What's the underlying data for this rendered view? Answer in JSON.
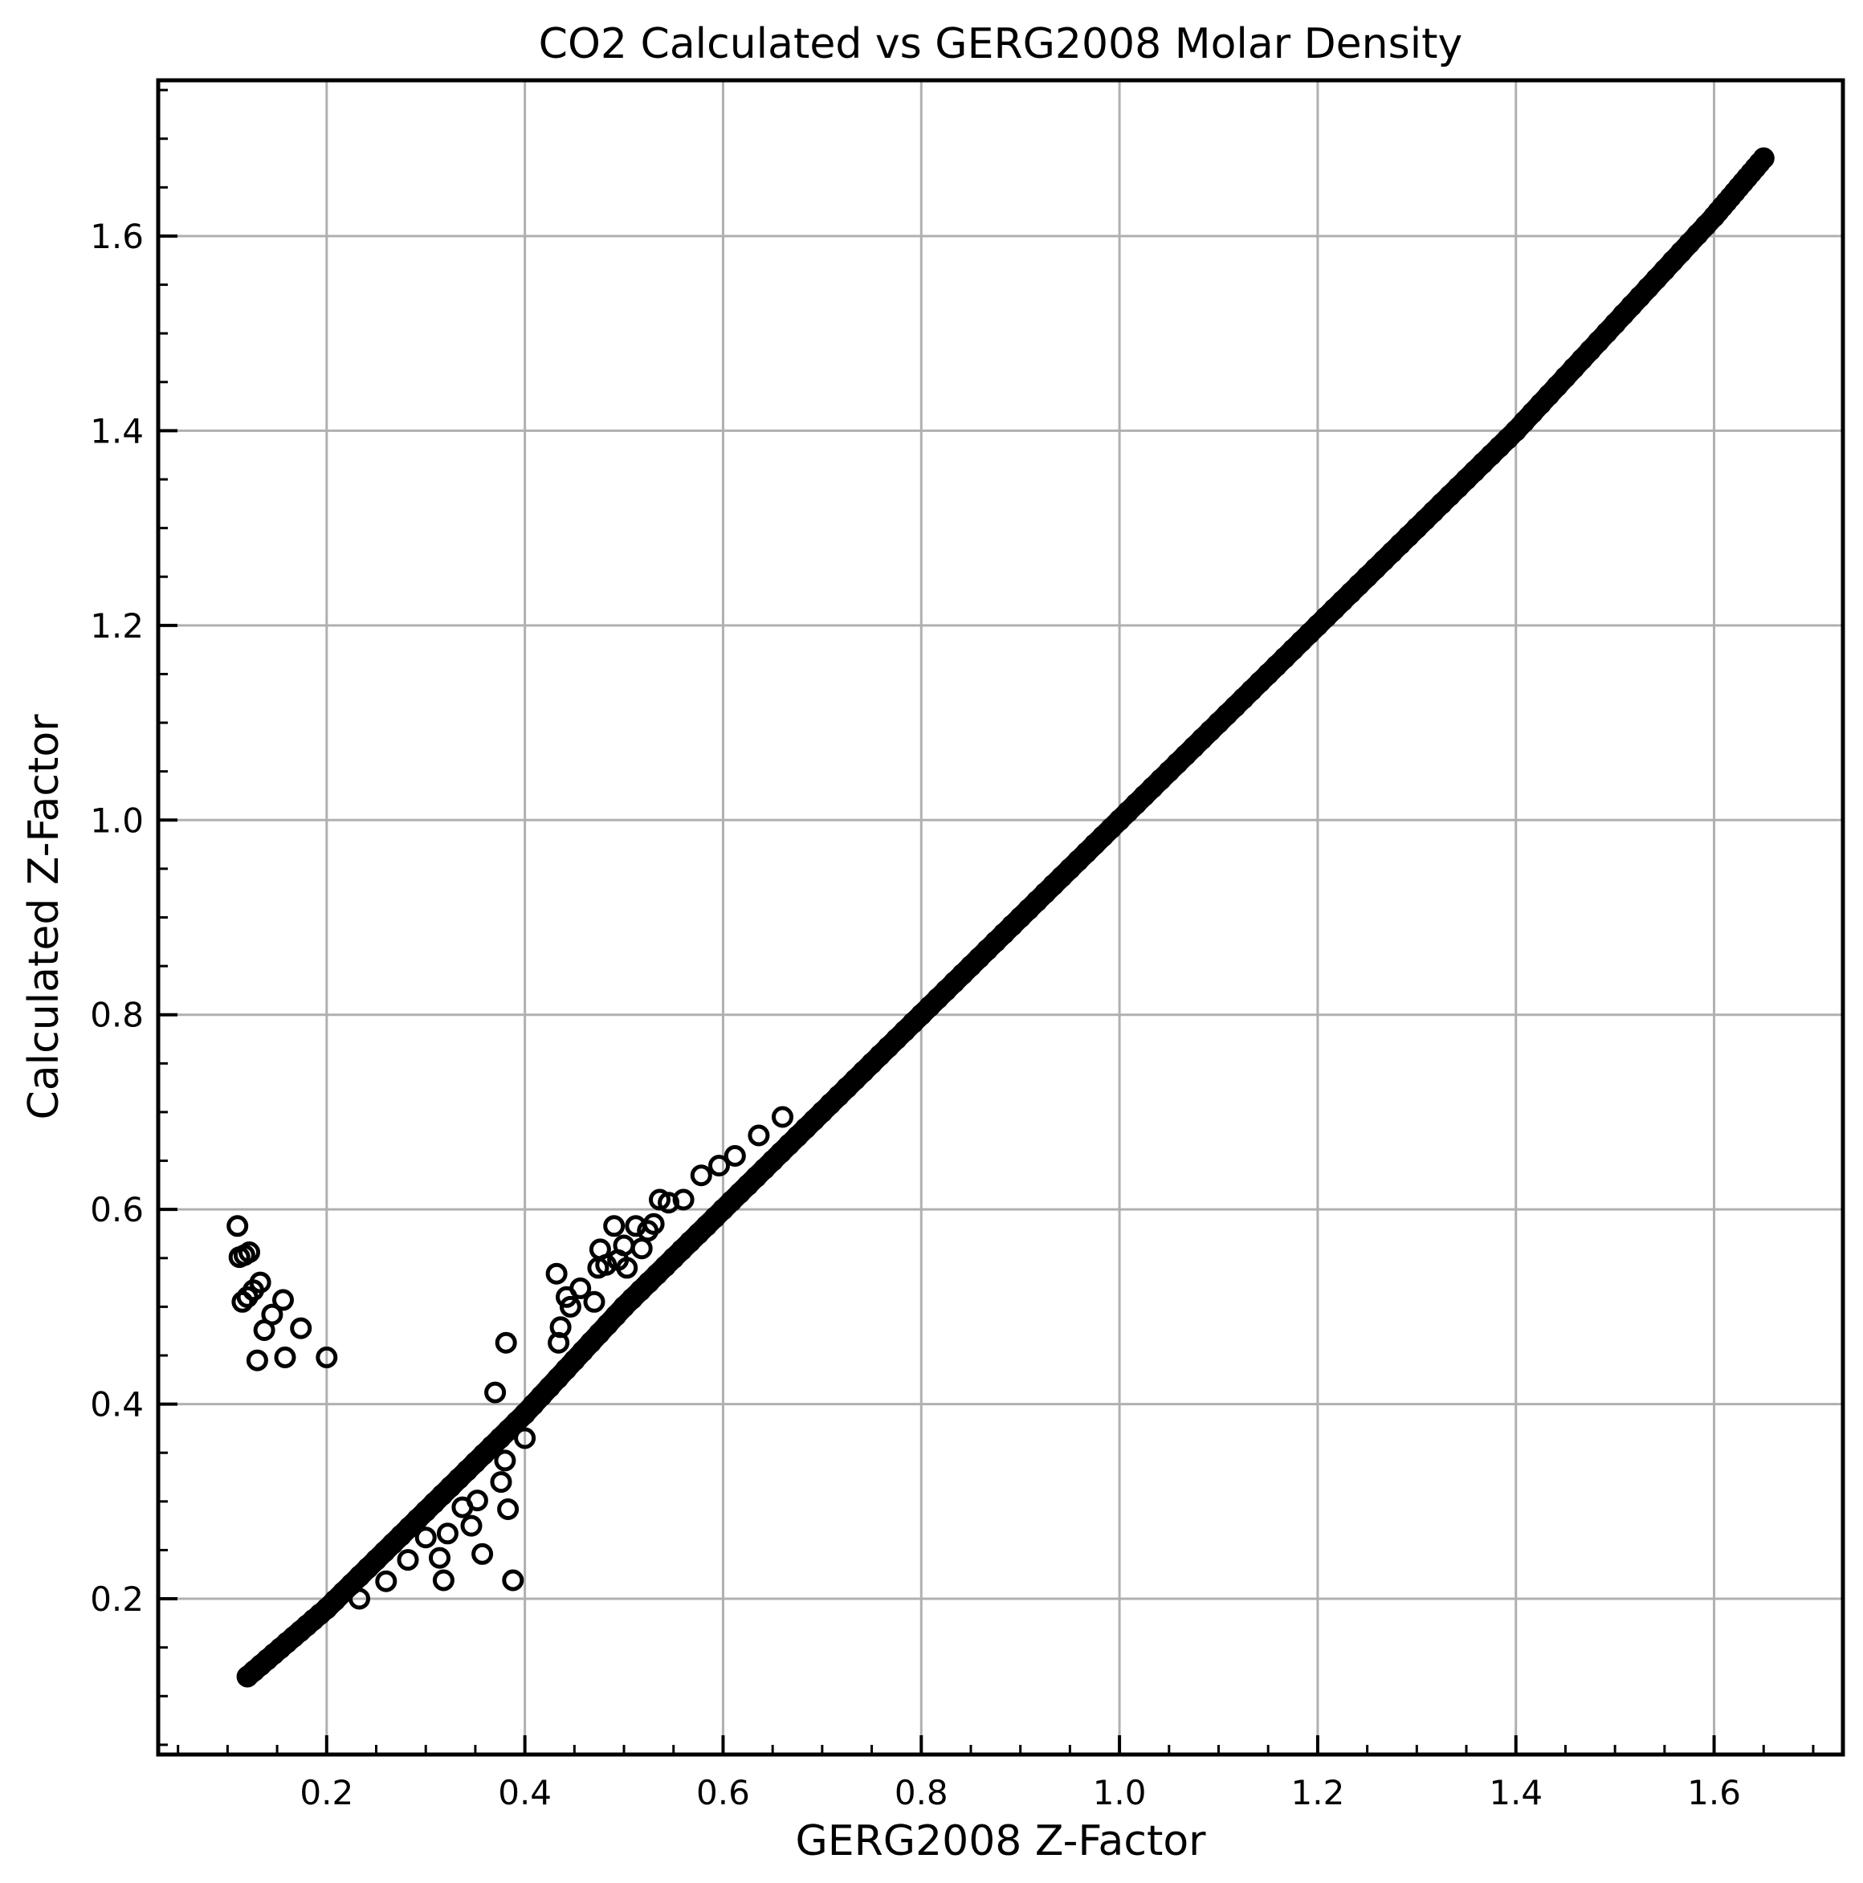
{
  "chart_data": {
    "type": "scatter",
    "title": "CO2 Calculated vs GERG2008 Molar Density",
    "xlabel": "GERG2008 Z-Factor",
    "ylabel": "Calculated Z-Factor",
    "xlim": [
      0.03,
      1.73
    ],
    "ylim": [
      0.04,
      1.76
    ],
    "x_ticks": [
      "0.2",
      "0.4",
      "0.6",
      "0.8",
      "1.0",
      "1.2",
      "1.4",
      "1.6"
    ],
    "y_ticks": [
      "0.2",
      "0.4",
      "0.6",
      "0.8",
      "1.0",
      "1.2",
      "1.4",
      "1.6"
    ],
    "grid": true,
    "marker": "open-circle",
    "marker_color": "#000000",
    "dense_band": {
      "description": "continuous dense band of points along y = x",
      "x_range": [
        0.12,
        1.65
      ],
      "points": [
        [
          0.12,
          0.12
        ],
        [
          0.2,
          0.19
        ],
        [
          0.3,
          0.29
        ],
        [
          0.4,
          0.39
        ],
        [
          0.5,
          0.5
        ],
        [
          0.6,
          0.6
        ],
        [
          0.7,
          0.7
        ],
        [
          0.8,
          0.8
        ],
        [
          0.9,
          0.9
        ],
        [
          1.0,
          1.0
        ],
        [
          1.1,
          1.1
        ],
        [
          1.2,
          1.2
        ],
        [
          1.3,
          1.3
        ],
        [
          1.4,
          1.4
        ],
        [
          1.5,
          1.51
        ],
        [
          1.6,
          1.62
        ],
        [
          1.65,
          1.68
        ]
      ]
    },
    "series": [
      {
        "values": [
          [
            0.11,
            0.583
          ],
          [
            0.112,
            0.551
          ],
          [
            0.117,
            0.553
          ],
          [
            0.122,
            0.556
          ],
          [
            0.115,
            0.505
          ],
          [
            0.12,
            0.51
          ],
          [
            0.126,
            0.517
          ],
          [
            0.133,
            0.525
          ],
          [
            0.13,
            0.445
          ],
          [
            0.137,
            0.476
          ],
          [
            0.145,
            0.492
          ],
          [
            0.156,
            0.507
          ],
          [
            0.158,
            0.448
          ],
          [
            0.174,
            0.478
          ],
          [
            0.2,
            0.448
          ],
          [
            0.233,
            0.2
          ],
          [
            0.26,
            0.218
          ],
          [
            0.282,
            0.24
          ],
          [
            0.3,
            0.263
          ],
          [
            0.314,
            0.242
          ],
          [
            0.318,
            0.219
          ],
          [
            0.322,
            0.267
          ],
          [
            0.337,
            0.294
          ],
          [
            0.346,
            0.275
          ],
          [
            0.352,
            0.301
          ],
          [
            0.357,
            0.246
          ],
          [
            0.37,
            0.412
          ],
          [
            0.376,
            0.32
          ],
          [
            0.381,
            0.463
          ],
          [
            0.383,
            0.292
          ],
          [
            0.388,
            0.219
          ],
          [
            0.38,
            0.342
          ],
          [
            0.4,
            0.365
          ],
          [
            0.432,
            0.534
          ],
          [
            0.434,
            0.463
          ],
          [
            0.436,
            0.479
          ],
          [
            0.442,
            0.51
          ],
          [
            0.446,
            0.5
          ],
          [
            0.456,
            0.519
          ],
          [
            0.47,
            0.505
          ],
          [
            0.474,
            0.54
          ],
          [
            0.476,
            0.559
          ],
          [
            0.482,
            0.543
          ],
          [
            0.49,
            0.583
          ],
          [
            0.494,
            0.548
          ],
          [
            0.5,
            0.563
          ],
          [
            0.503,
            0.54
          ],
          [
            0.512,
            0.583
          ],
          [
            0.518,
            0.56
          ],
          [
            0.524,
            0.578
          ],
          [
            0.53,
            0.585
          ],
          [
            0.536,
            0.61
          ],
          [
            0.545,
            0.607
          ],
          [
            0.56,
            0.61
          ],
          [
            0.578,
            0.635
          ],
          [
            0.596,
            0.645
          ],
          [
            0.612,
            0.655
          ],
          [
            0.636,
            0.676
          ],
          [
            0.66,
            0.695
          ]
        ]
      }
    ]
  }
}
